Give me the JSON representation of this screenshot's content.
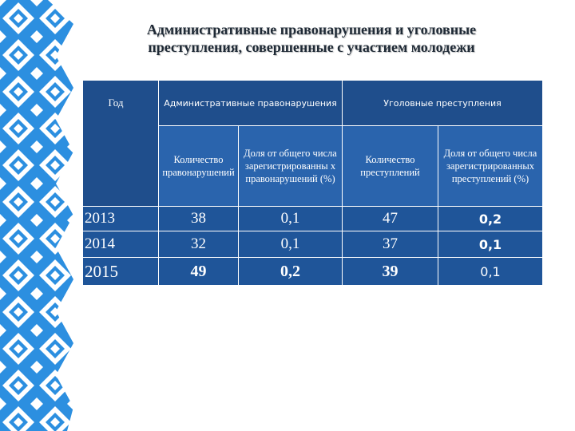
{
  "title": "Административные правонарушения и уголовные преступления, совершенные с участием молодежи",
  "table": {
    "year_header": "Год",
    "group_admin": "Административные правонарушения",
    "group_criminal": "Уголовные преступления",
    "col_admin_count": "Количество правонарушений",
    "col_admin_share": "Доля от общего числа зарегистрированны х правонарушений (%)",
    "col_crim_count": "Количество преступлений",
    "col_crim_share": "Доля от общего числа зарегистрированных преступлений (%)",
    "rows": [
      {
        "year": "2013",
        "admin_count": "38",
        "admin_share": "0,1",
        "crim_count": "47",
        "crim_share": "0,2"
      },
      {
        "year": "2014",
        "admin_count": "32",
        "admin_share": "0,1",
        "crim_count": "37",
        "crim_share": "0,1"
      },
      {
        "year": "2015",
        "admin_count": "49",
        "admin_share": "0,2",
        "crim_count": "39",
        "crim_share": "0,1"
      }
    ]
  },
  "colors": {
    "header_dark": "#1f4e8c",
    "header_mid": "#2a64ad",
    "body_blue": "#1f5599",
    "ornament_blue": "#2c8fe0"
  }
}
